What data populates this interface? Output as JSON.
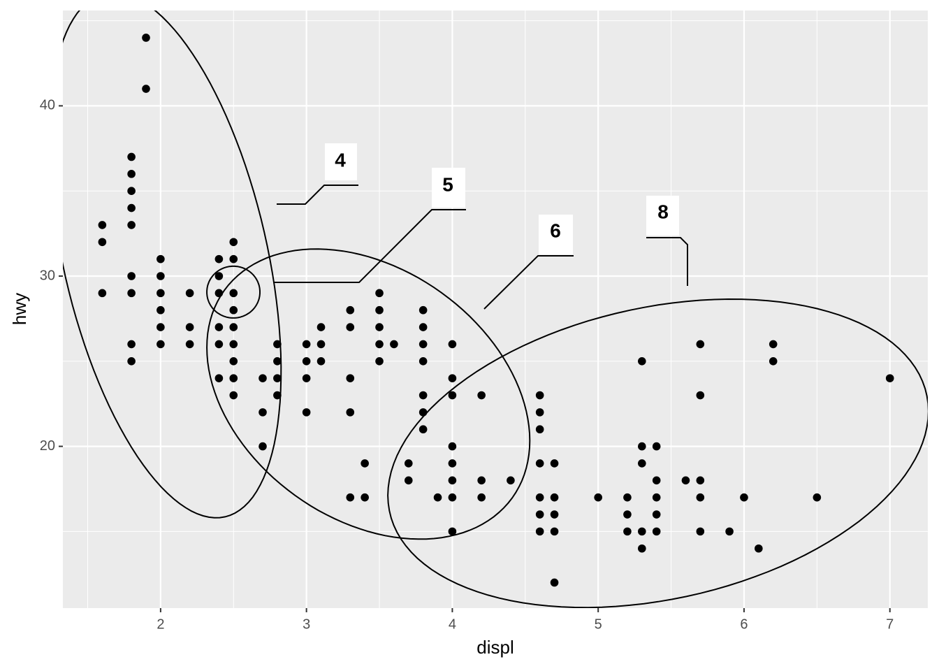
{
  "chart_data": {
    "type": "scatter",
    "x_label": "displ",
    "y_label": "hwy",
    "xlim": [
      1.33,
      7.26
    ],
    "ylim": [
      10.5,
      45.6
    ],
    "xticks": [
      2,
      3,
      4,
      5,
      6,
      7
    ],
    "yticks": [
      20,
      30,
      40
    ],
    "x_minor_ticks": [
      1.5,
      2.5,
      3.5,
      4.5,
      5.5,
      6.5
    ],
    "y_minor_ticks": [
      15,
      25,
      35,
      45
    ],
    "grid": true,
    "color": "#000000",
    "x": [
      1.6,
      1.6,
      1.6,
      1.8,
      1.8,
      1.8,
      1.8,
      1.8,
      1.8,
      1.8,
      1.8,
      1.8,
      1.9,
      1.9,
      2,
      2,
      2,
      2,
      2,
      2,
      2.2,
      2.2,
      2.2,
      2.4,
      2.4,
      2.4,
      2.4,
      2.4,
      2.4,
      2.5,
      2.5,
      2.5,
      2.5,
      2.5,
      2.5,
      2.5,
      2.5,
      2.5,
      2.7,
      2.7,
      2.7,
      2.8,
      2.8,
      2.8,
      2.8,
      3,
      3,
      3,
      3,
      3.1,
      3.1,
      3.1,
      3.3,
      3.3,
      3.3,
      3.3,
      3.3,
      3.4,
      3.4,
      3.5,
      3.5,
      3.5,
      3.5,
      3.5,
      3.6,
      3.7,
      3.7,
      3.8,
      3.8,
      3.8,
      3.8,
      3.8,
      3.8,
      3.8,
      3.9,
      4,
      4,
      4,
      4,
      4,
      4,
      4,
      4,
      4.2,
      4.2,
      4.2,
      4.4,
      4.6,
      4.6,
      4.6,
      4.6,
      4.6,
      4.6,
      4.6,
      4.7,
      4.7,
      4.7,
      4.7,
      4.7,
      5,
      5.2,
      5.2,
      5.2,
      5.3,
      5.3,
      5.3,
      5.3,
      5.3,
      5.4,
      5.4,
      5.4,
      5.4,
      5.4,
      5.6,
      5.7,
      5.7,
      5.7,
      5.7,
      5.7,
      5.9,
      6,
      6.1,
      6.2,
      6.2,
      6.5,
      7
    ],
    "values": [
      33,
      32,
      29,
      37,
      36,
      35,
      34,
      33,
      30,
      29,
      26,
      25,
      44,
      41,
      31,
      30,
      29,
      28,
      27,
      26,
      29,
      27,
      26,
      31,
      30,
      29,
      27,
      26,
      24,
      32,
      31,
      29,
      28,
      27,
      26,
      25,
      24,
      23,
      24,
      22,
      20,
      26,
      25,
      24,
      23,
      26,
      25,
      24,
      22,
      27,
      26,
      25,
      28,
      27,
      24,
      22,
      17,
      19,
      17,
      29,
      28,
      27,
      26,
      25,
      26,
      19,
      18,
      28,
      27,
      26,
      25,
      23,
      22,
      21,
      17,
      26,
      24,
      23,
      20,
      19,
      18,
      17,
      15,
      23,
      18,
      17,
      18,
      23,
      22,
      21,
      19,
      17,
      16,
      15,
      19,
      17,
      16,
      15,
      12,
      17,
      17,
      16,
      15,
      25,
      20,
      19,
      15,
      14,
      20,
      18,
      17,
      16,
      15,
      18,
      26,
      23,
      18,
      17,
      15,
      15,
      17,
      14,
      26,
      25,
      17,
      24
    ],
    "groups": [
      {
        "label": "4",
        "ellipse": {
          "center": [
            2.03,
            31.23
          ],
          "u": [
            -0.412,
            15.37
          ],
          "v": [
            0.681,
            1.336
          ]
        }
      },
      {
        "label": "5",
        "ellipse": {
          "center": [
            2.499,
            29.06
          ],
          "u": [
            0.182,
            0
          ],
          "v": [
            0,
            1.52
          ]
        }
      },
      {
        "label": "6",
        "ellipse": {
          "center": [
            3.424,
            23.07
          ],
          "u": [
            1.107,
            -2.734
          ],
          "v": [
            0,
            8.07
          ]
        }
      },
      {
        "label": "8",
        "ellipse": {
          "center": [
            5.411,
            19.59
          ],
          "u": [
            1.853,
            2.471
          ],
          "v": [
            0,
            8.713
          ]
        }
      }
    ]
  }
}
